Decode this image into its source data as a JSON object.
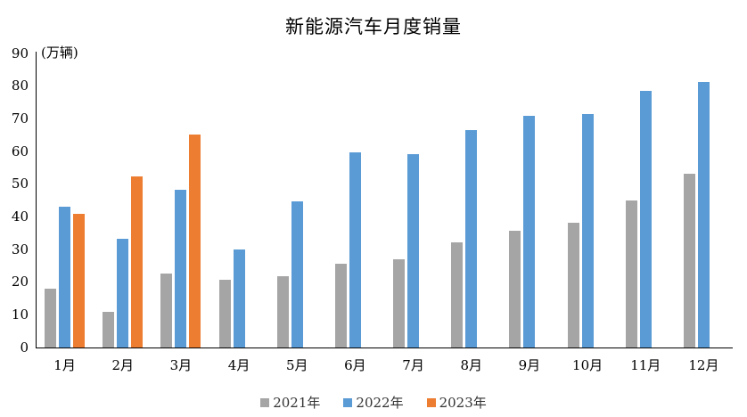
{
  "chart_data": {
    "type": "bar",
    "title": "新能源汽车月度销量",
    "unit": "(万辆)",
    "categories": [
      "1月",
      "2月",
      "3月",
      "4月",
      "5月",
      "6月",
      "7月",
      "8月",
      "9月",
      "10月",
      "11月",
      "12月"
    ],
    "series": [
      {
        "name": "2021年",
        "color": "#A5A5A5",
        "values": [
          17.9,
          11.0,
          22.6,
          20.6,
          21.7,
          25.6,
          27.1,
          32.1,
          35.7,
          38.3,
          45.0,
          53.1
        ]
      },
      {
        "name": "2022年",
        "color": "#5B9BD5",
        "values": [
          43.1,
          33.4,
          48.4,
          29.9,
          44.7,
          59.6,
          59.3,
          66.6,
          70.8,
          71.4,
          78.6,
          81.4
        ]
      },
      {
        "name": "2023年",
        "color": "#ED7D31",
        "values": [
          40.8,
          52.5,
          65.3,
          null,
          null,
          null,
          null,
          null,
          null,
          null,
          null,
          null
        ]
      }
    ],
    "ylabel": "",
    "xlabel": "",
    "ylim": [
      0,
      90
    ],
    "y_ticks": [
      0,
      10,
      20,
      30,
      40,
      50,
      60,
      70,
      80,
      90
    ],
    "grid": false,
    "legend_position": "bottom",
    "axis_color": "#000000"
  }
}
